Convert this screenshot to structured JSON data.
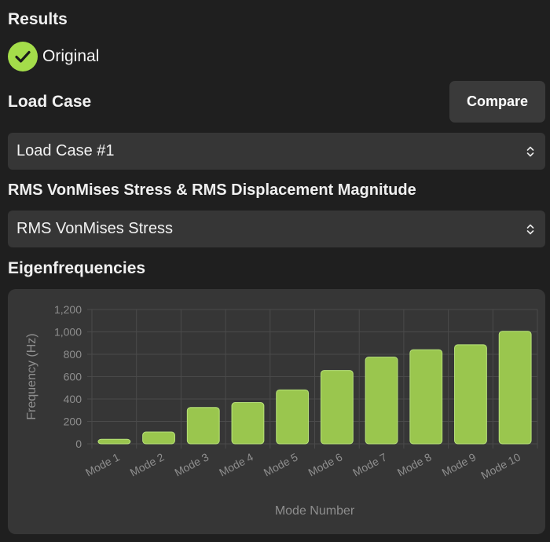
{
  "results": {
    "title": "Results",
    "original_label": "Original",
    "accent": "#a4dd4a"
  },
  "load_case": {
    "title": "Load Case",
    "compare_label": "Compare",
    "selected": "Load Case #1"
  },
  "result_type": {
    "title": "RMS VonMises Stress & RMS Displacement Magnitude",
    "selected": "RMS VonMises Stress"
  },
  "eigen": {
    "title": "Eigenfrequencies"
  },
  "icons": {
    "original": "check-icon",
    "select": "up-down-chevron-icon"
  },
  "chart_data": {
    "type": "bar",
    "title": "",
    "xlabel": "Mode Number",
    "ylabel": "Frequency (Hz)",
    "categories": [
      "Mode 1",
      "Mode 2",
      "Mode 3",
      "Mode 4",
      "Mode 5",
      "Mode 6",
      "Mode 7",
      "Mode 8",
      "Mode 9",
      "Mode 10"
    ],
    "values": [
      40,
      105,
      325,
      368,
      482,
      655,
      775,
      840,
      885,
      1005
    ],
    "ylim": [
      0,
      1200
    ],
    "yticks": [
      "0",
      "200",
      "400",
      "600",
      "800",
      "1,000",
      "1,200"
    ],
    "grid": true,
    "bar_color": "#9ac64e"
  }
}
